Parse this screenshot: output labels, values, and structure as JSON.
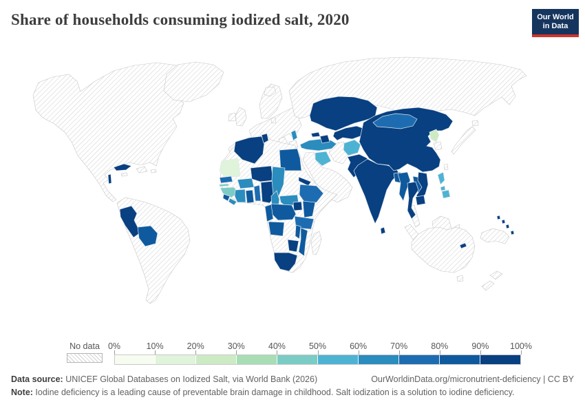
{
  "header": {
    "title": "Share of households consuming iodized salt, 2020",
    "logo_line1": "Our World",
    "logo_line2": "in Data"
  },
  "legend": {
    "no_data_label": "No data",
    "ticks": [
      "0%",
      "10%",
      "20%",
      "30%",
      "40%",
      "50%",
      "60%",
      "70%",
      "80%",
      "90%",
      "100%"
    ]
  },
  "footer": {
    "source_label": "Data source:",
    "source_text": " UNICEF Global Databases on Iodized Salt, via World Bank (2026)",
    "link_text": "OurWorldinData.org/micronutrient-deficiency | CC BY",
    "note_label": "Note:",
    "note_text": " Iodine deficiency is a leading cause of preventable brain damage in childhood. Salt iodization is a solution to iodine deficiency."
  },
  "chart_data": {
    "type": "choropleth-map",
    "title": "Share of households consuming iodized salt, 2020",
    "unit": "share of households (%)",
    "no_data_style": "hatched",
    "color_scale": {
      "palette": [
        "#f7fcf0",
        "#e0f3db",
        "#ccebc5",
        "#a8ddb5",
        "#7bccc4",
        "#4eb3d3",
        "#2b8cbe",
        "#1d6cb1",
        "#0f5a9e",
        "#084081"
      ],
      "bin_edges": [
        "0%",
        "10%",
        "20%",
        "30%",
        "40%",
        "50%",
        "60%",
        "70%",
        "80%",
        "90%",
        "100%"
      ]
    },
    "countries": [
      {
        "id": "cuba",
        "name": "Cuba",
        "bin": 9,
        "range": "90-100%"
      },
      {
        "id": "belize",
        "name": "Belize",
        "bin": 9,
        "range": "90-100%"
      },
      {
        "id": "peru",
        "name": "Peru",
        "bin": 9,
        "range": "90-100%"
      },
      {
        "id": "bolivia",
        "name": "Bolivia",
        "bin": 8,
        "range": "80-90%"
      },
      {
        "id": "albania",
        "name": "Albania",
        "bin": 6,
        "range": "60-70%"
      },
      {
        "id": "turkey",
        "name": "Turkey",
        "bin": 6,
        "range": "60-70%"
      },
      {
        "id": "iraq",
        "name": "Iraq",
        "bin": 5,
        "range": "50-60%"
      },
      {
        "id": "georgia",
        "name": "Georgia",
        "bin": 9,
        "range": "90-100%"
      },
      {
        "id": "azerbaijan",
        "name": "Azerbaijan",
        "bin": 9,
        "range": "90-100%"
      },
      {
        "id": "kazakhstan",
        "name": "Kazakhstan",
        "bin": 9,
        "range": "90-100%"
      },
      {
        "id": "central-asia-south",
        "name": "Uzbekistan & Turkmenistan",
        "bin": 9,
        "range": "90-100%"
      },
      {
        "id": "afghanistan",
        "name": "Afghanistan",
        "bin": 5,
        "range": "50-60%"
      },
      {
        "id": "pakistan",
        "name": "Pakistan",
        "bin": 9,
        "range": "90-100%"
      },
      {
        "id": "india",
        "name": "India",
        "bin": 9,
        "range": "90-100%"
      },
      {
        "id": "bangladesh",
        "name": "Bangladesh",
        "bin": 8,
        "range": "80-90%"
      },
      {
        "id": "sri-lanka",
        "name": "Sri Lanka",
        "bin": 9,
        "range": "90-100%"
      },
      {
        "id": "china",
        "name": "China",
        "bin": 9,
        "range": "90-100%"
      },
      {
        "id": "mongolia",
        "name": "Mongolia",
        "bin": 7,
        "range": "70-80%"
      },
      {
        "id": "north-korea",
        "name": "North Korea",
        "bin": 2,
        "range": "20-30%"
      },
      {
        "id": "myanmar",
        "name": "Myanmar",
        "bin": 8,
        "range": "80-90%"
      },
      {
        "id": "laos",
        "name": "Laos",
        "bin": 8,
        "range": "80-90%"
      },
      {
        "id": "thailand",
        "name": "Thailand",
        "bin": 9,
        "range": "90-100%"
      },
      {
        "id": "vietnam",
        "name": "Vietnam",
        "bin": 9,
        "range": "90-100%"
      },
      {
        "id": "cambodia",
        "name": "Cambodia",
        "bin": 9,
        "range": "90-100%"
      },
      {
        "id": "philippines",
        "name": "Philippines",
        "bin": 5,
        "range": "50-60%"
      },
      {
        "id": "timor-leste",
        "name": "Timor-Leste",
        "bin": 9,
        "range": "90-100%"
      },
      {
        "id": "pacific-islands",
        "name": "Solomon Islands, Vanuatu & Fiji",
        "bin": 9,
        "range": "90-100%"
      },
      {
        "id": "algeria",
        "name": "Algeria",
        "bin": 9,
        "range": "90-100%"
      },
      {
        "id": "tunisia",
        "name": "Tunisia",
        "bin": 9,
        "range": "90-100%"
      },
      {
        "id": "egypt",
        "name": "Egypt",
        "bin": 8,
        "range": "80-90%"
      },
      {
        "id": "mauritania",
        "name": "Mauritania",
        "bin": 1,
        "range": "10-20%"
      },
      {
        "id": "senegal",
        "name": "Senegal",
        "bin": 7,
        "range": "70-80%"
      },
      {
        "id": "gambia",
        "name": "Gambia",
        "bin": 4,
        "range": "40-50%"
      },
      {
        "id": "guinea",
        "name": "Guinea & Guinea-Bissau",
        "bin": 4,
        "range": "40-50%"
      },
      {
        "id": "sierra-leone",
        "name": "Sierra Leone",
        "bin": 8,
        "range": "80-90%"
      },
      {
        "id": "liberia",
        "name": "Liberia",
        "bin": 6,
        "range": "60-70%"
      },
      {
        "id": "cote-divoire",
        "name": "Cote d'Ivoire",
        "bin": 6,
        "range": "60-70%"
      },
      {
        "id": "burkina-faso",
        "name": "Burkina Faso",
        "bin": 6,
        "range": "60-70%"
      },
      {
        "id": "ghana",
        "name": "Ghana",
        "bin": 8,
        "range": "80-90%"
      },
      {
        "id": "togo-benin",
        "name": "Togo & Benin",
        "bin": 7,
        "range": "70-80%"
      },
      {
        "id": "nigeria",
        "name": "Nigeria",
        "bin": 9,
        "range": "90-100%"
      },
      {
        "id": "niger",
        "name": "Niger",
        "bin": 9,
        "range": "90-100%"
      },
      {
        "id": "chad",
        "name": "Chad",
        "bin": 6,
        "range": "60-70%"
      },
      {
        "id": "cameroon",
        "name": "Cameroon",
        "bin": 6,
        "range": "60-70%"
      },
      {
        "id": "central-african-republic",
        "name": "Central African Republic",
        "bin": 6,
        "range": "60-70%"
      },
      {
        "id": "eritrea",
        "name": "Eritrea",
        "bin": 9,
        "range": "90-100%"
      },
      {
        "id": "ethiopia",
        "name": "Ethiopia",
        "bin": 7,
        "range": "70-80%"
      },
      {
        "id": "uganda",
        "name": "Uganda",
        "bin": 9,
        "range": "90-100%"
      },
      {
        "id": "kenya",
        "name": "Kenya",
        "bin": 8,
        "range": "80-90%"
      },
      {
        "id": "drc",
        "name": "Democratic Republic of Congo",
        "bin": 8,
        "range": "80-90%"
      },
      {
        "id": "congo-gabon",
        "name": "Congo & Gabon",
        "bin": 8,
        "range": "80-90%"
      },
      {
        "id": "tanzania",
        "name": "Tanzania",
        "bin": 7,
        "range": "70-80%"
      },
      {
        "id": "angola",
        "name": "Angola",
        "bin": 8,
        "range": "80-90%"
      },
      {
        "id": "malawi",
        "name": "Malawi",
        "bin": 8,
        "range": "80-90%"
      },
      {
        "id": "mozambique",
        "name": "Mozambique",
        "bin": 8,
        "range": "80-90%"
      },
      {
        "id": "zimbabwe",
        "name": "Zimbabwe",
        "bin": 9,
        "range": "90-100%"
      },
      {
        "id": "south-africa",
        "name": "South Africa",
        "bin": 9,
        "range": "90-100%"
      }
    ]
  }
}
